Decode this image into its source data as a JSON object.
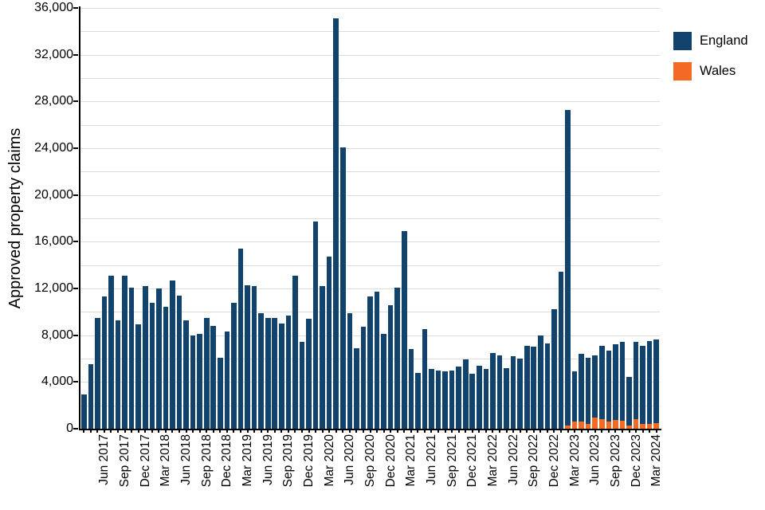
{
  "chart_data": {
    "type": "bar",
    "stacked": true,
    "title": "",
    "ylabel": "Approved property claims",
    "xlabel": "",
    "ylim": [
      0,
      36000
    ],
    "grid_step": 2000,
    "y_tick_step": 4000,
    "legend_position": "top-right",
    "x": [
      "Mar 2017",
      "Apr 2017",
      "May 2017",
      "Jun 2017",
      "Jul 2017",
      "Aug 2017",
      "Sep 2017",
      "Oct 2017",
      "Nov 2017",
      "Dec 2017",
      "Jan 2018",
      "Feb 2018",
      "Mar 2018",
      "Apr 2018",
      "May 2018",
      "Jun 2018",
      "Jul 2018",
      "Aug 2018",
      "Sep 2018",
      "Oct 2018",
      "Nov 2018",
      "Dec 2018",
      "Jan 2019",
      "Feb 2019",
      "Mar 2019",
      "Apr 2019",
      "May 2019",
      "Jun 2019",
      "Jul 2019",
      "Aug 2019",
      "Sep 2019",
      "Oct 2019",
      "Nov 2019",
      "Dec 2019",
      "Jan 2020",
      "Feb 2020",
      "Mar 2020",
      "Apr 2020",
      "May 2020",
      "Jun 2020",
      "Jul 2020",
      "Aug 2020",
      "Sep 2020",
      "Oct 2020",
      "Nov 2020",
      "Dec 2020",
      "Jan 2021",
      "Feb 2021",
      "Mar 2021",
      "Apr 2021",
      "May 2021",
      "Jun 2021",
      "Jul 2021",
      "Aug 2021",
      "Sep 2021",
      "Oct 2021",
      "Nov 2021",
      "Dec 2021",
      "Jan 2022",
      "Feb 2022",
      "Mar 2022",
      "Apr 2022",
      "May 2022",
      "Jun 2022",
      "Jul 2022",
      "Aug 2022",
      "Sep 2022",
      "Oct 2022",
      "Nov 2022",
      "Dec 2022",
      "Jan 2023",
      "Feb 2023",
      "Mar 2023",
      "Apr 2023",
      "May 2023",
      "Jun 2023",
      "Jul 2023",
      "Aug 2023",
      "Sep 2023",
      "Oct 2023",
      "Nov 2023",
      "Dec 2023",
      "Jan 2024",
      "Feb 2024",
      "Mar 2024"
    ],
    "x_tick_labels": [
      "Jun 2017",
      "Sep 2017",
      "Dec 2017",
      "Mar 2018",
      "Jun 2018",
      "Sep 2018",
      "Dec 2018",
      "Mar 2019",
      "Jun 2019",
      "Sep 2019",
      "Dec 2019",
      "Mar 2020",
      "Jun 2020",
      "Sep 2020",
      "Dec 2020",
      "Mar 2021",
      "Jun 2021",
      "Sep 2021",
      "Dec 2021",
      "Mar 2022",
      "Jun 2022",
      "Sep 2022",
      "Dec 2022",
      "Mar 2023",
      "Jun 2023",
      "Sep 2023",
      "Dec 2023",
      "Mar 2024"
    ],
    "y_tick_labels": [
      "0",
      "4,000",
      "8,000",
      "12,000",
      "16,000",
      "20,000",
      "24,000",
      "28,000",
      "32,000",
      "36,000"
    ],
    "series": [
      {
        "name": "England",
        "color": "#12436D",
        "values": [
          2900,
          5500,
          9500,
          11300,
          13100,
          9300,
          13100,
          12100,
          8900,
          12200,
          10800,
          12000,
          10400,
          12700,
          11400,
          9300,
          8000,
          8100,
          9500,
          8800,
          6100,
          8300,
          10800,
          15400,
          12300,
          12200,
          9900,
          9500,
          9500,
          9000,
          9700,
          13100,
          7400,
          9400,
          17700,
          12200,
          14700,
          35100,
          24100,
          9900,
          6900,
          8700,
          11300,
          11700,
          8100,
          10600,
          12100,
          16900,
          6800,
          4800,
          8500,
          5100,
          5000,
          4900,
          5000,
          5300,
          5900,
          4700,
          5400,
          5100,
          6500,
          6300,
          5200,
          6200,
          6000,
          7100,
          7000,
          8000,
          7300,
          10200,
          13400,
          27000,
          4300,
          5800,
          5700,
          5300,
          6300,
          6100,
          6500,
          6700,
          4100,
          6600,
          6700,
          7100,
          7200
        ]
      },
      {
        "name": "Wales",
        "color": "#F46A25",
        "values": [
          0,
          0,
          0,
          0,
          0,
          0,
          0,
          0,
          0,
          0,
          0,
          0,
          0,
          0,
          0,
          0,
          0,
          0,
          0,
          0,
          0,
          0,
          0,
          0,
          0,
          0,
          0,
          0,
          0,
          0,
          0,
          0,
          0,
          0,
          0,
          0,
          0,
          0,
          0,
          0,
          0,
          0,
          0,
          0,
          0,
          0,
          0,
          0,
          0,
          0,
          0,
          0,
          0,
          0,
          0,
          0,
          0,
          0,
          0,
          0,
          0,
          0,
          0,
          0,
          0,
          0,
          0,
          0,
          0,
          0,
          0,
          300,
          600,
          600,
          400,
          950,
          800,
          600,
          750,
          700,
          300,
          800,
          400,
          400,
          450
        ]
      }
    ]
  },
  "colors": {
    "grid": "#dcdcdc",
    "axis": "#000000",
    "background": "#ffffff"
  },
  "legend": {
    "items": [
      {
        "label": "England"
      },
      {
        "label": "Wales"
      }
    ]
  }
}
